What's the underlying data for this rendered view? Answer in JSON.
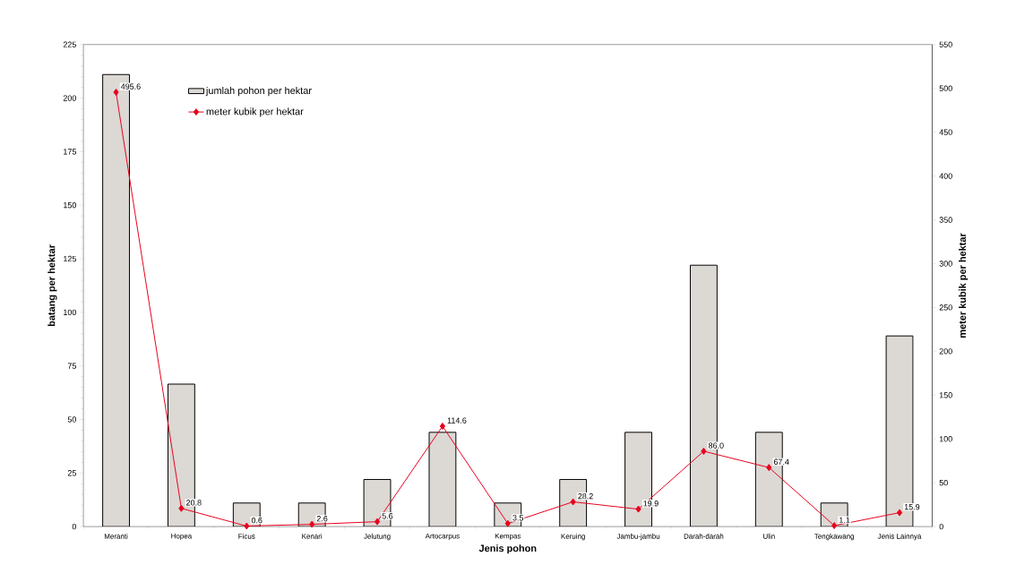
{
  "chart_data": {
    "type": "bar",
    "xlabel": "Jenis pohon",
    "ylabel": "batang per hektar",
    "y2label": "meter kubik per hektar",
    "categories": [
      "Meranti",
      "Hopea",
      "Ficus",
      "Kenari",
      "Jelutung",
      "Artocarpus",
      "Kempas",
      "Keruing",
      "Jambu-jambu",
      "Darah-darah",
      "Ulin",
      "Tengkawang",
      "Jenis Lainnya"
    ],
    "series": [
      {
        "name": "jumlah pohon per hektar",
        "type": "bar",
        "color": "#dcd8d4",
        "values": [
          211,
          66.5,
          11,
          11,
          22,
          44,
          11,
          22,
          44,
          122,
          44,
          11,
          89
        ]
      },
      {
        "name": "meter kubik per hektar",
        "type": "line",
        "axis": "y2",
        "color": "#e8001c",
        "marker": "diamond",
        "values": [
          495.6,
          20.8,
          0.6,
          2.6,
          5.6,
          114.6,
          3.5,
          28.2,
          19.9,
          86.0,
          67.4,
          1.1,
          15.9
        ],
        "value_labels": [
          "495.6",
          "20.8",
          "0.6",
          "2.6",
          "5.6",
          "114.6",
          "3.5",
          "28.2",
          "19.9",
          "86.0",
          "67.4",
          "1.1",
          "15.9"
        ]
      }
    ],
    "ylim": [
      0,
      225
    ],
    "yticks": [
      0,
      25,
      50,
      75,
      100,
      125,
      150,
      175,
      200,
      225
    ],
    "y2lim": [
      0,
      550
    ],
    "y2ticks": [
      0,
      50,
      100,
      150,
      200,
      250,
      300,
      350,
      400,
      450,
      500,
      550
    ],
    "grid": false,
    "legend": "top left"
  }
}
